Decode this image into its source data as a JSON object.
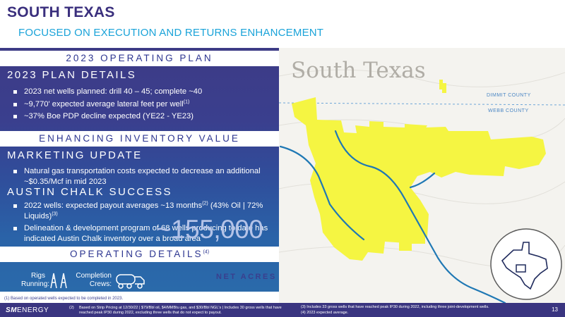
{
  "header": {
    "title": "SOUTH TEXAS",
    "subtitle": "FOCUSED ON EXECUTION AND RETURNS ENHANCEMENT"
  },
  "left_panel": {
    "band_operating_plan": "2023 OPERATING PLAN",
    "plan_details": {
      "heading": "2023 PLAN DETAILS",
      "bullets": [
        "2023 net wells planned: drill 40 – 45; complete ~40",
        "~9,770' expected average lateral feet per well",
        "~37% Boe PDP decline expected (YE22 - YE23)"
      ],
      "bullet2_sup": "(1)"
    },
    "band_inventory": "ENHANCING INVENTORY VALUE",
    "marketing": {
      "heading": "MARKETING UPDATE",
      "bullets": [
        "Natural gas transportation costs expected to decrease an additional ~$0.35/Mcf in mid 2023"
      ]
    },
    "austin_chalk": {
      "heading": "AUSTIN CHALK SUCCESS",
      "bullet1_a": "2022 wells: expected payout averages ~13 months",
      "bullet1_sup1": "(2)",
      "bullet1_b": " (43% Oil | 72% Liquids)",
      "bullet1_sup2": "(3)",
      "bullet2": "Delineation & development program of 68 wells producing to date has indicated Austin Chalk inventory over a broad area"
    },
    "band_operating_details": "OPERATING DETAILS",
    "band_operating_details_sup": "(4)",
    "stats": {
      "rigs_label_1": "Rigs",
      "rigs_label_2": "Running:",
      "completion_label_1": "Completion",
      "completion_label_2": "Crews:",
      "net_acres_value": "~155,000",
      "net_acres_label": "NET ACRES"
    }
  },
  "map": {
    "title": "South Texas",
    "county_north": "DIMMIT COUNTY",
    "county_south": "WEBB COUNTY",
    "colors": {
      "acreage": "#f5f542",
      "river": "#1f78b4",
      "county_line": "#6ea6d8"
    }
  },
  "footer": {
    "footnote_1": "(1)   Based on operated wells expected to be completed in 2023.",
    "logo_sm": "SM",
    "logo_energy": "ENERGY",
    "footnote_2_num": "(2)",
    "footnote_2": "Based on Strip Pricing at 12/30/22 | $79/Bbl oil, $4/MMBtu gas, and $30/Bbl NGL's | Includes 30 gross wells that have reached peak IP30 during 2022, excluding three wells that do not expect to payout.",
    "footnote_3": "(3)   Includes 33 gross wells that have reached peak IP30 during 2022, including three joint-development wells.",
    "footnote_4": "(4)   2023 expected average.",
    "page_number": "13"
  }
}
